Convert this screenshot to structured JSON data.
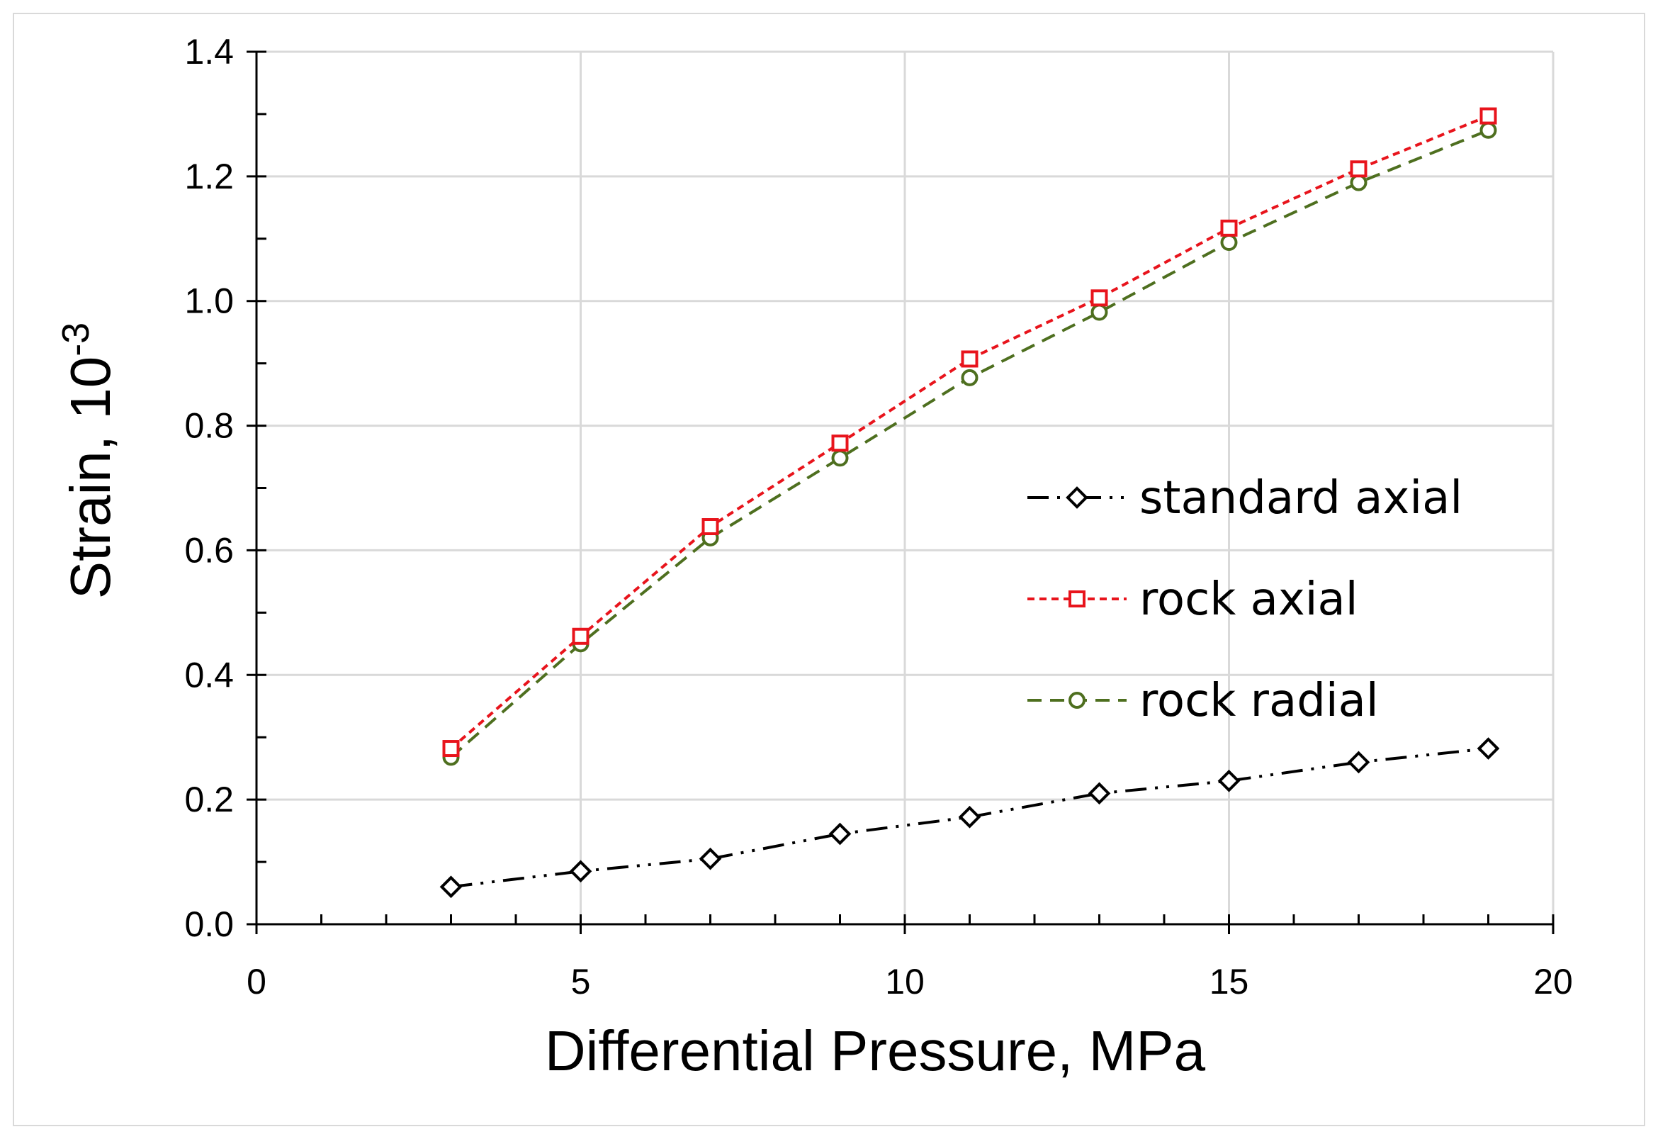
{
  "chart_data": {
    "type": "line",
    "title": "",
    "xlabel": "Differential Pressure, MPa",
    "ylabel_main": "Strain, 10",
    "ylabel_exponent": "-3",
    "xlim": [
      0,
      20
    ],
    "ylim": [
      0,
      1.4
    ],
    "xticks": [
      0,
      5,
      10,
      15,
      20
    ],
    "xtick_labels": [
      "0",
      "5",
      "10",
      "15",
      "20"
    ],
    "yticks": [
      0,
      0.2,
      0.4,
      0.6,
      0.8,
      1.0,
      1.2,
      1.4
    ],
    "ytick_labels": [
      "0.0",
      "0.2",
      "0.4",
      "0.6",
      "0.8",
      "1.0",
      "1.2",
      "1.4"
    ],
    "grid": true,
    "legend_position": "right-middle",
    "x": [
      3,
      5,
      7,
      9,
      11,
      13,
      15,
      17,
      19
    ],
    "series": [
      {
        "name": "standard axial",
        "values": [
          0.06,
          0.085,
          0.105,
          0.145,
          0.172,
          0.21,
          0.23,
          0.26,
          0.282
        ],
        "color": "#000000",
        "marker": "diamond",
        "dash": "long-dash-dot-dot"
      },
      {
        "name": "rock axial",
        "values": [
          0.282,
          0.462,
          0.638,
          0.772,
          0.907,
          1.005,
          1.117,
          1.212,
          1.297
        ],
        "color": "#e8141c",
        "marker": "square",
        "dash": "short-dash"
      },
      {
        "name": "rock radial",
        "values": [
          0.268,
          0.45,
          0.62,
          0.748,
          0.877,
          0.982,
          1.094,
          1.19,
          1.274
        ],
        "color": "#4e6f1f",
        "marker": "circle",
        "dash": "dash"
      }
    ]
  }
}
